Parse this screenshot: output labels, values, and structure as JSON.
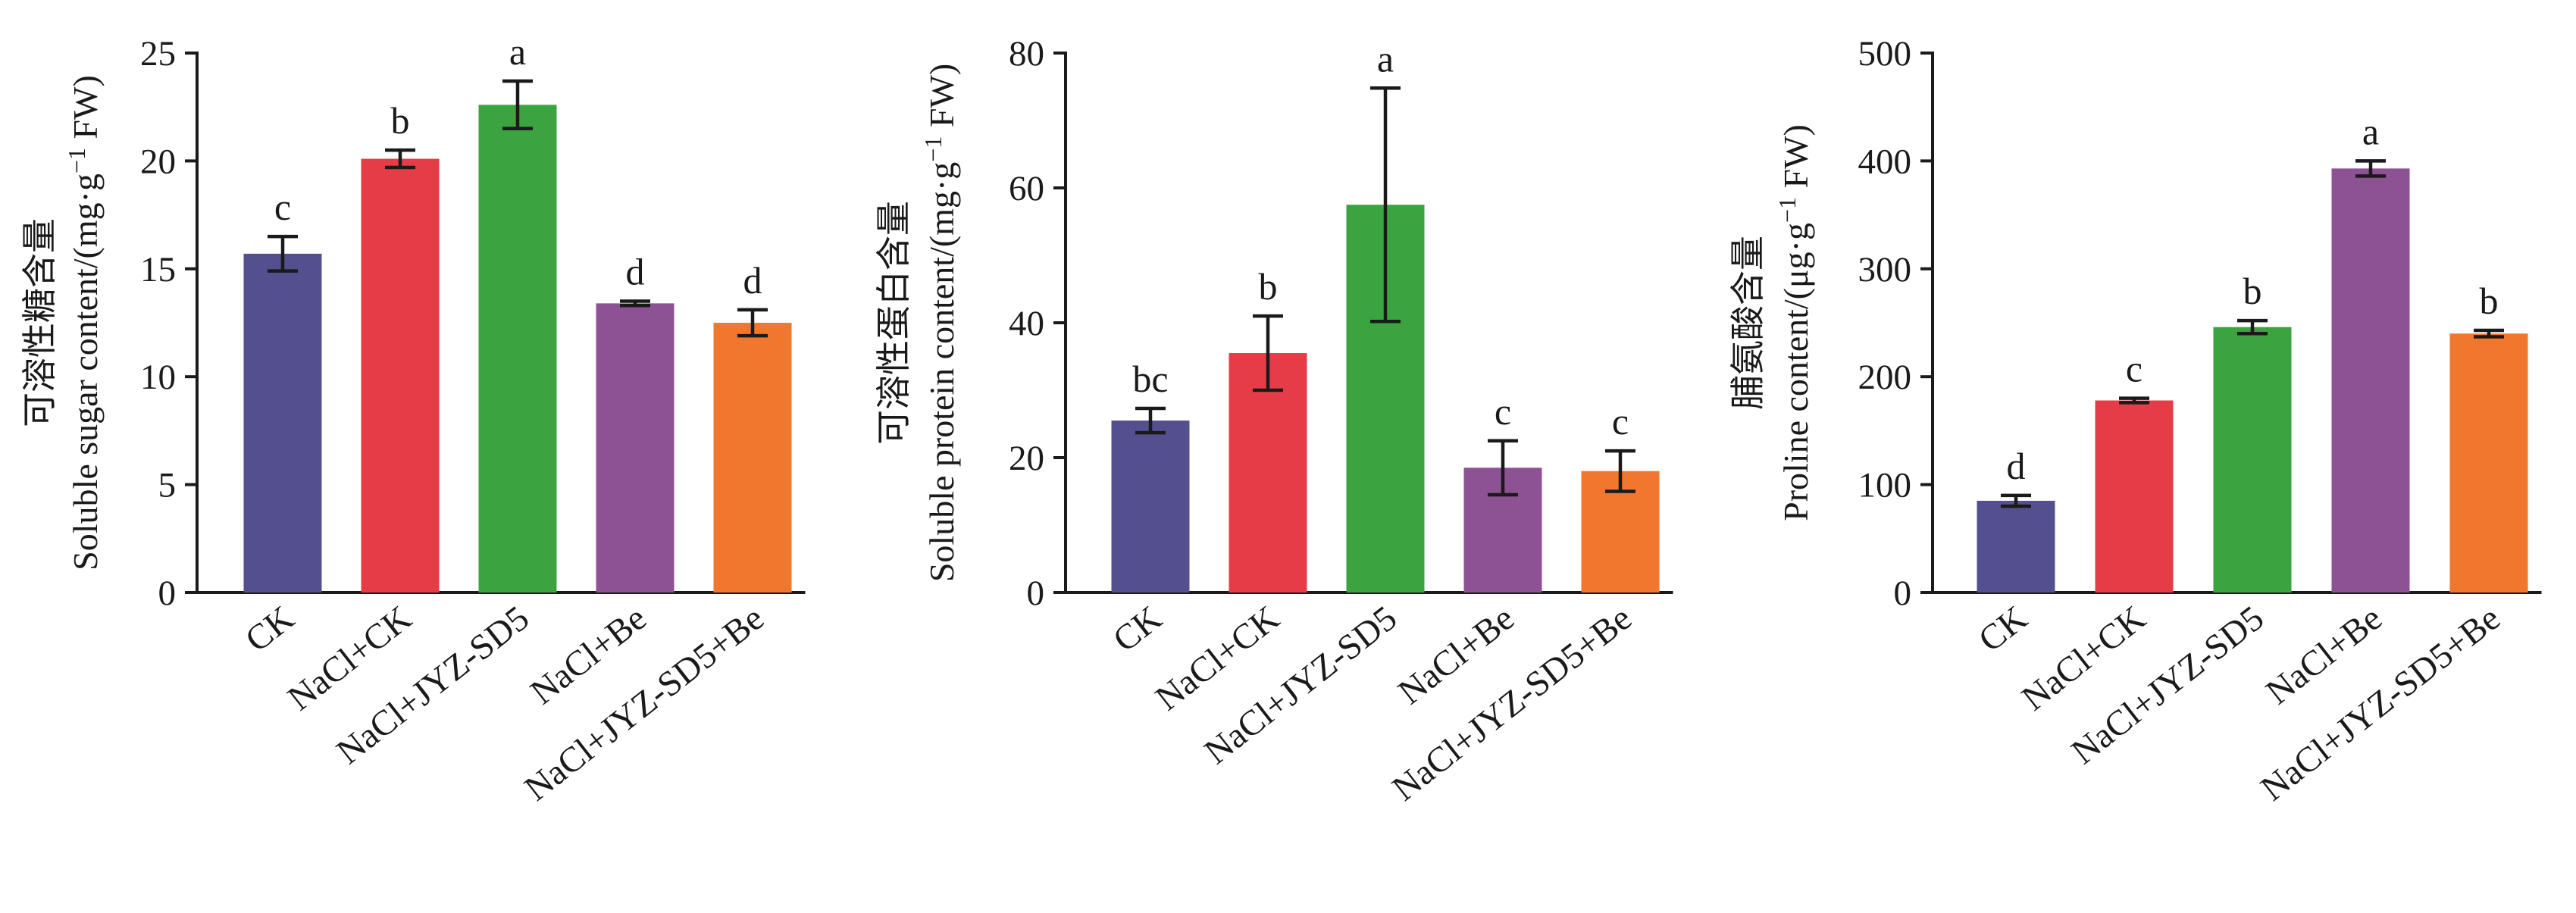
{
  "chart_data": [
    {
      "type": "bar",
      "categories": [
        "CK",
        "NaCl+CK",
        "NaCl+JYZ-SD5",
        "NaCl+Be",
        "NaCl+JYZ-SD5+Be"
      ],
      "values": [
        15.7,
        20.1,
        22.6,
        13.4,
        12.5
      ],
      "errors": [
        0.8,
        0.4,
        1.1,
        0.1,
        0.6
      ],
      "significance": [
        "c",
        "b",
        "a",
        "d",
        "d"
      ],
      "ylabel_cn": "可溶性糖含量",
      "ylabel_en_prefix": "Soluble sugar content/(mg·g",
      "ylabel_sup": "−1",
      "ylabel_en_suffix": " FW)",
      "yticks": [
        "0",
        "5",
        "10",
        "15",
        "20",
        "25"
      ],
      "ylim": [
        0,
        25
      ],
      "grid": false
    },
    {
      "type": "bar",
      "categories": [
        "CK",
        "NaCl+CK",
        "NaCl+JYZ-SD5",
        "NaCl+Be",
        "NaCl+JYZ-SD5+Be"
      ],
      "values": [
        25.5,
        35.5,
        57.5,
        18.5,
        18.0
      ],
      "errors": [
        1.8,
        5.5,
        17.3,
        4.0,
        3.0
      ],
      "significance": [
        "bc",
        "b",
        "a",
        "c",
        "c"
      ],
      "ylabel_cn": "可溶性蛋白含量",
      "ylabel_en_prefix": "Soluble protein content/(mg·g",
      "ylabel_sup": "−1",
      "ylabel_en_suffix": " FW)",
      "yticks": [
        "0",
        "20",
        "40",
        "60",
        "80"
      ],
      "ylim": [
        0,
        80
      ],
      "grid": false
    },
    {
      "type": "bar",
      "categories": [
        "CK",
        "NaCl+CK",
        "NaCl+JYZ-SD5",
        "NaCl+Be",
        "NaCl+JYZ-SD5+Be"
      ],
      "values": [
        85,
        178,
        246,
        393,
        240
      ],
      "errors": [
        5,
        2,
        6,
        7,
        3
      ],
      "significance": [
        "d",
        "c",
        "b",
        "a",
        "b"
      ],
      "ylabel_cn": "脯氨酸含量",
      "ylabel_en_prefix": "Proline content/(μg·g",
      "ylabel_sup": "−1",
      "ylabel_en_suffix": " FW)",
      "yticks": [
        "0",
        "100",
        "200",
        "300",
        "400",
        "500"
      ],
      "ylim": [
        0,
        500
      ],
      "grid": false
    }
  ],
  "colors": [
    "#54508f",
    "#e63c47",
    "#3ba440",
    "#8d5293",
    "#f2772e"
  ]
}
